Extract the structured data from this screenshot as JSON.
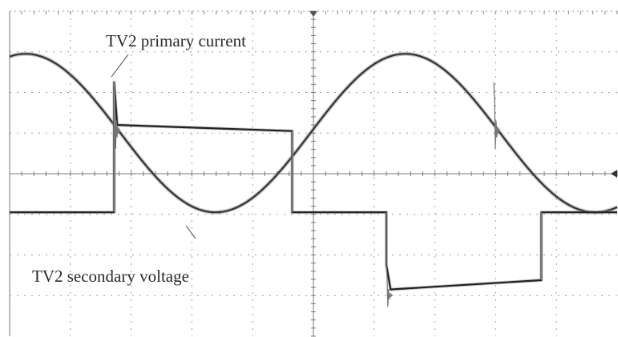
{
  "chart_data": {
    "type": "line",
    "title": "",
    "xlabel": "",
    "ylabel": "",
    "grid": true,
    "grid_divisions": {
      "x": 10,
      "y": 8
    },
    "x_range": [
      0,
      10
    ],
    "y_range": [
      -4,
      4
    ],
    "series": [
      {
        "name": "TV2 primary current",
        "style": "sine",
        "color": "#333333",
        "period_div": 6.25,
        "amplitude_div": 1.95,
        "offset_div": 1.0,
        "phase_div": -1.3
      },
      {
        "name": "TV2 secondary voltage",
        "style": "square",
        "color": "#222222",
        "color_spike": "#777777",
        "period_div": 6.25,
        "high_div": 1.05,
        "zero_div": -0.95,
        "low_div": -3.0,
        "spike_high_div": 2.25,
        "spike_low_div": -2.25,
        "points": [
          [
            0.0,
            -0.95
          ],
          [
            1.72,
            -0.95
          ],
          [
            1.72,
            2.25
          ],
          [
            1.77,
            1.2
          ],
          [
            4.65,
            1.05
          ],
          [
            4.65,
            -0.95
          ],
          [
            6.2,
            -0.95
          ],
          [
            6.2,
            -2.25
          ],
          [
            6.27,
            -2.85
          ],
          [
            8.75,
            -2.62
          ],
          [
            8.75,
            -0.95
          ],
          [
            10.0,
            -0.95
          ]
        ]
      }
    ],
    "annotations": [
      {
        "text": "TV2 primary current",
        "points_to": "TV2 primary current"
      },
      {
        "text": "TV2 secondary voltage",
        "points_to": "TV2 secondary voltage"
      }
    ]
  }
}
